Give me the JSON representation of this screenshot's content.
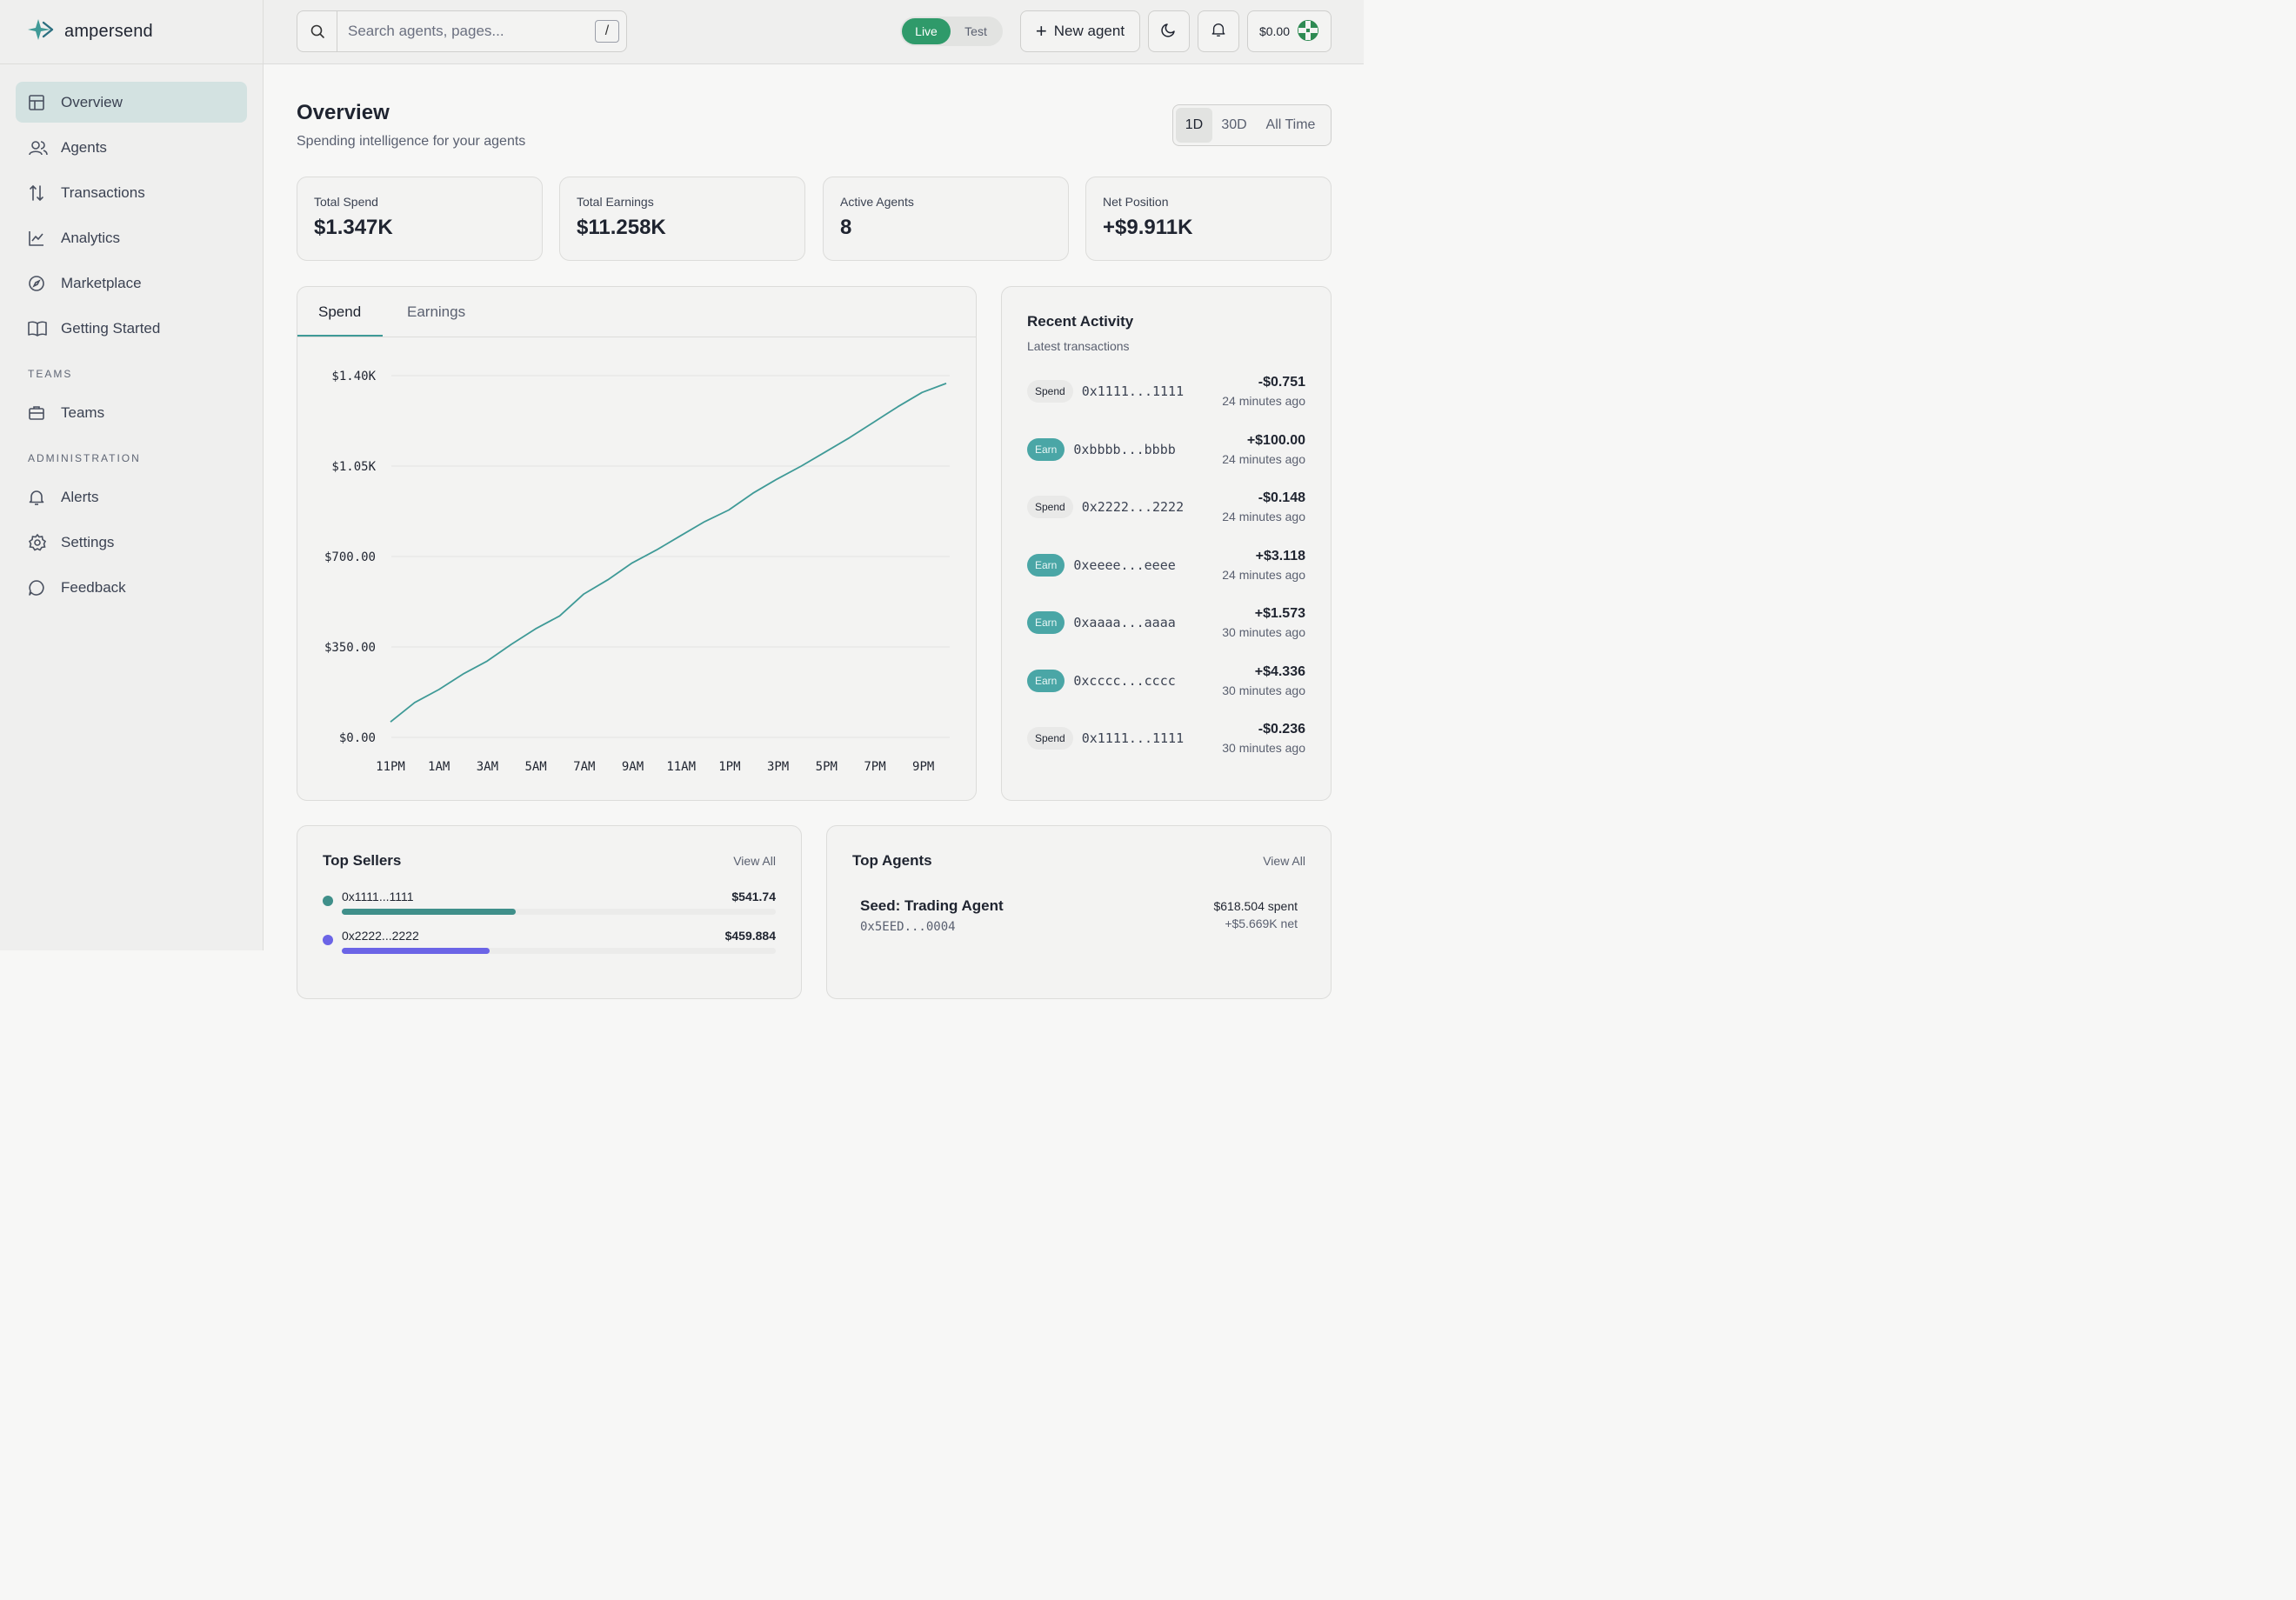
{
  "brand": {
    "name": "ampersend"
  },
  "sidebar": {
    "items": [
      {
        "label": "Overview",
        "icon": "grid-icon"
      },
      {
        "label": "Agents",
        "icon": "users-icon"
      },
      {
        "label": "Transactions",
        "icon": "arrows-updown-icon"
      },
      {
        "label": "Analytics",
        "icon": "line-chart-icon"
      },
      {
        "label": "Marketplace",
        "icon": "compass-icon"
      },
      {
        "label": "Getting Started",
        "icon": "book-icon"
      }
    ],
    "teams_heading": "TEAMS",
    "teams_items": [
      {
        "label": "Teams",
        "icon": "briefcase-icon"
      }
    ],
    "admin_heading": "ADMINISTRATION",
    "admin_items": [
      {
        "label": "Alerts",
        "icon": "bell-icon"
      },
      {
        "label": "Settings",
        "icon": "gear-icon"
      },
      {
        "label": "Feedback",
        "icon": "message-icon"
      }
    ]
  },
  "topbar": {
    "search_placeholder": "Search agents, pages...",
    "search_shortcut": "/",
    "mode_live": "Live",
    "mode_test": "Test",
    "new_agent": "New agent",
    "wallet_balance": "$0.00"
  },
  "overview": {
    "title": "Overview",
    "subtitle": "Spending intelligence for your agents",
    "ranges": [
      "1D",
      "30D",
      "All Time"
    ],
    "selected_range": "1D"
  },
  "stats": [
    {
      "label": "Total Spend",
      "value": "$1.347K"
    },
    {
      "label": "Total Earnings",
      "value": "$11.258K"
    },
    {
      "label": "Active Agents",
      "value": "8"
    },
    {
      "label": "Net Position",
      "value": "+$9.911K"
    }
  ],
  "chart_tabs": [
    "Spend",
    "Earnings"
  ],
  "chart_data": {
    "type": "line",
    "title": "",
    "xlabel": "",
    "ylabel": "",
    "y_ticks": [
      "$0.00",
      "$350.00",
      "$700.00",
      "$1.05K",
      "$1.40K"
    ],
    "ylim": [
      0,
      1400
    ],
    "x_ticks": [
      "11PM",
      "1AM",
      "3AM",
      "5AM",
      "7AM",
      "9AM",
      "11AM",
      "1PM",
      "3PM",
      "5PM",
      "7PM",
      "9PM"
    ],
    "series": [
      {
        "color": "#3f9a97",
        "values": [
          60,
          135,
          185,
          245,
          295,
          360,
          420,
          470,
          555,
          610,
          675,
          725,
          780,
          835,
          880,
          945,
          1000,
          1050,
          1105,
          1160,
          1220,
          1280,
          1335,
          1370
        ]
      }
    ],
    "grid": true
  },
  "activity": {
    "title": "Recent Activity",
    "subtitle": "Latest transactions",
    "items": [
      {
        "type": "Spend",
        "address": "0x1111...1111",
        "amount": "-$0.751",
        "time": "24 minutes ago"
      },
      {
        "type": "Earn",
        "address": "0xbbbb...bbbb",
        "amount": "+$100.00",
        "time": "24 minutes ago"
      },
      {
        "type": "Spend",
        "address": "0x2222...2222",
        "amount": "-$0.148",
        "time": "24 minutes ago"
      },
      {
        "type": "Earn",
        "address": "0xeeee...eeee",
        "amount": "+$3.118",
        "time": "24 minutes ago"
      },
      {
        "type": "Earn",
        "address": "0xaaaa...aaaa",
        "amount": "+$1.573",
        "time": "30 minutes ago"
      },
      {
        "type": "Earn",
        "address": "0xcccc...cccc",
        "amount": "+$4.336",
        "time": "30 minutes ago"
      },
      {
        "type": "Spend",
        "address": "0x1111...1111",
        "amount": "-$0.236",
        "time": "30 minutes ago"
      }
    ]
  },
  "top_sellers": {
    "title": "Top Sellers",
    "view_all": "View All",
    "items": [
      {
        "name": "0x1111...1111",
        "amount": "$541.74",
        "share": 0.4,
        "color": "#3f8f8a"
      },
      {
        "name": "0x2222...2222",
        "amount": "$459.884",
        "share": 0.34,
        "color": "#6b64e6"
      }
    ]
  },
  "top_agents": {
    "title": "Top Agents",
    "view_all": "View All",
    "items": [
      {
        "name": "Seed: Trading Agent",
        "id": "0x5EED...0004",
        "spent": "$618.504 spent",
        "net": "+$5.669K net"
      }
    ]
  }
}
